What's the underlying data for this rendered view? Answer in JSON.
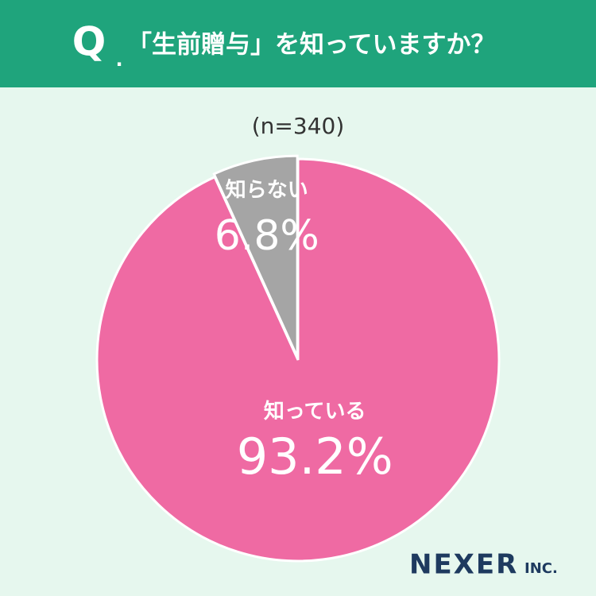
{
  "chart_data": {
    "type": "pie",
    "header_mark": "Q",
    "header_dot": ".",
    "title": "「生前贈与」を知っていますか？",
    "subtitle": "(n=340)",
    "categories": [
      "知っている",
      "知らない"
    ],
    "values": [
      93.2,
      6.8
    ],
    "value_labels": [
      "93.2%",
      "6.8%"
    ],
    "colors": [
      "#ef6aa3",
      "#a5a5a5"
    ],
    "start_angle": 0,
    "direction": "clockwise",
    "brand": "NEXER",
    "brand_suffix": "INC."
  }
}
